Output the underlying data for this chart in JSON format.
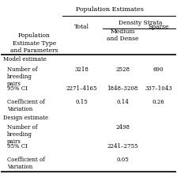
{
  "title": "Population Estimates",
  "subtitle": "Density Strata",
  "col_headers": [
    "",
    "Total",
    "Medium\nand Dense",
    "Sparse"
  ],
  "row_label_header": "Population\nEstimate Type\nand Parameters",
  "rows": [
    {
      "label": "Model estimate",
      "indent": 0,
      "bold": false,
      "values": [
        "",
        "",
        ""
      ]
    },
    {
      "label": "Number of\nbreeding\npairs",
      "indent": 1,
      "bold": false,
      "values": [
        "3218",
        "2528",
        "690"
      ]
    },
    {
      "label": "95% CI",
      "indent": 1,
      "bold": false,
      "values": [
        "2271–4165",
        "1848–3208",
        "337–1043"
      ]
    },
    {
      "label": "Coefficient of\nVariation",
      "indent": 1,
      "bold": false,
      "values": [
        "0.15",
        "0.14",
        "0.26"
      ]
    },
    {
      "label": "Design estimate",
      "indent": 0,
      "bold": false,
      "values": [
        "",
        "",
        ""
      ]
    },
    {
      "label": "Number of\nbreeding\npairs",
      "indent": 1,
      "bold": false,
      "values": [
        "",
        "2498",
        ""
      ]
    },
    {
      "label": "95% CI",
      "indent": 1,
      "bold": false,
      "values": [
        "",
        "2241–2755",
        ""
      ]
    },
    {
      "label": "Coefficient of\nVariation",
      "indent": 1,
      "bold": false,
      "values": [
        "",
        "0.05",
        ""
      ]
    }
  ],
  "bg_color": "#ffffff",
  "text_color": "#000000",
  "line_color": "#000000"
}
